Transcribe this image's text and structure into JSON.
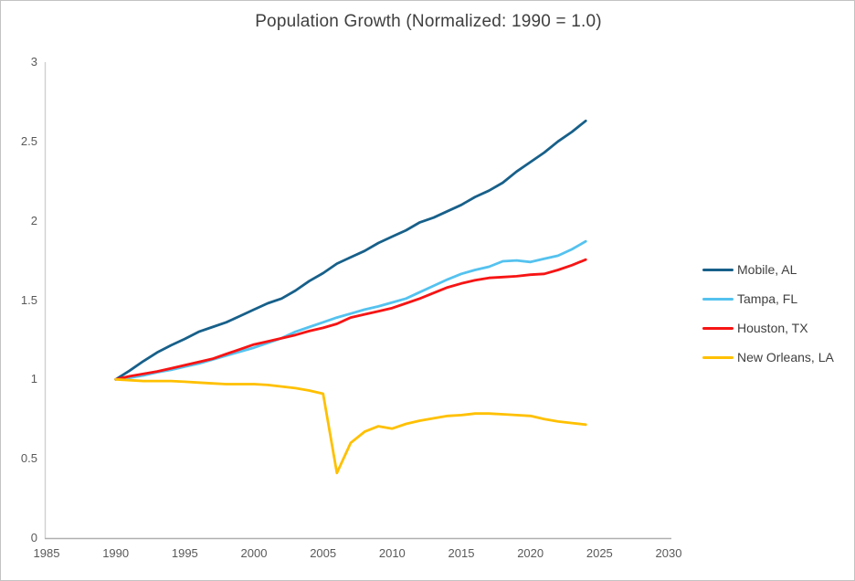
{
  "title": "Population Growth (Normalized: 1990 = 1.0)",
  "axes": {
    "x": {
      "tick_labels": [
        "1985",
        "1990",
        "1995",
        "2000",
        "2005",
        "2010",
        "2015",
        "2020",
        "2025",
        "2030"
      ],
      "tick_values": [
        1985,
        1990,
        1995,
        2000,
        2005,
        2010,
        2015,
        2020,
        2025,
        2030
      ]
    },
    "y": {
      "tick_labels": [
        "0",
        "0.5",
        "1",
        "1.5",
        "2",
        "2.5",
        "3"
      ],
      "tick_values": [
        0,
        0.5,
        1,
        1.5,
        2,
        2.5,
        3
      ]
    }
  },
  "colors": {
    "title_text": "#3f3f3f",
    "axis_text": "#595959",
    "y_axis_line": "#cfcfcf",
    "x_axis_line": "#b0b0b0",
    "background": "#ffffff"
  },
  "chart_data": {
    "type": "line",
    "title": "Population Growth (Normalized: 1990 = 1.0)",
    "xlabel": "",
    "ylabel": "",
    "xlim": [
      1985,
      2030
    ],
    "ylim": [
      0,
      3
    ],
    "grid": false,
    "legend_position": "right",
    "x": [
      1990,
      1991,
      1992,
      1993,
      1994,
      1995,
      1996,
      1997,
      1998,
      1999,
      2000,
      2001,
      2002,
      2003,
      2004,
      2005,
      2006,
      2007,
      2008,
      2009,
      2010,
      2011,
      2012,
      2013,
      2014,
      2015,
      2016,
      2017,
      2018,
      2019,
      2020,
      2021,
      2022,
      2023,
      2024
    ],
    "series": [
      {
        "name": "Mobile, AL",
        "color": "#17608a",
        "values": [
          1.0,
          1.055,
          1.115,
          1.17,
          1.215,
          1.255,
          1.3,
          1.33,
          1.36,
          1.4,
          1.44,
          1.48,
          1.51,
          1.56,
          1.62,
          1.67,
          1.73,
          1.77,
          1.81,
          1.86,
          1.9,
          1.94,
          1.99,
          2.02,
          2.06,
          2.1,
          2.15,
          2.19,
          2.24,
          2.31,
          2.37,
          2.43,
          2.5,
          2.56,
          2.63
        ]
      },
      {
        "name": "Tampa, FL",
        "color": "#54c2ef",
        "values": [
          1.0,
          1.01,
          1.025,
          1.045,
          1.06,
          1.08,
          1.1,
          1.125,
          1.15,
          1.175,
          1.2,
          1.23,
          1.26,
          1.3,
          1.33,
          1.36,
          1.39,
          1.415,
          1.44,
          1.46,
          1.485,
          1.51,
          1.55,
          1.59,
          1.63,
          1.665,
          1.69,
          1.71,
          1.745,
          1.75,
          1.74,
          1.76,
          1.78,
          1.82,
          1.87
        ]
      },
      {
        "name": "Houston, TX",
        "color": "#f71414",
        "values": [
          1.0,
          1.02,
          1.035,
          1.05,
          1.07,
          1.09,
          1.11,
          1.13,
          1.16,
          1.19,
          1.22,
          1.24,
          1.26,
          1.28,
          1.305,
          1.325,
          1.35,
          1.39,
          1.41,
          1.43,
          1.45,
          1.48,
          1.51,
          1.545,
          1.58,
          1.605,
          1.625,
          1.64,
          1.645,
          1.65,
          1.66,
          1.665,
          1.69,
          1.72,
          1.755
        ]
      },
      {
        "name": "New Orleans, LA",
        "color": "#ffc000",
        "values": [
          1.0,
          0.995,
          0.99,
          0.99,
          0.99,
          0.985,
          0.98,
          0.975,
          0.97,
          0.97,
          0.97,
          0.965,
          0.955,
          0.945,
          0.93,
          0.91,
          0.41,
          0.6,
          0.67,
          0.705,
          0.69,
          0.72,
          0.74,
          0.755,
          0.77,
          0.775,
          0.785,
          0.785,
          0.78,
          0.775,
          0.77,
          0.75,
          0.735,
          0.725,
          0.715
        ]
      }
    ]
  }
}
